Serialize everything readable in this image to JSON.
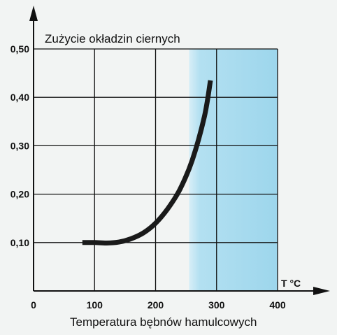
{
  "chart_data": {
    "type": "line",
    "title": "Zużycie okładzin ciernych",
    "xlabel": "Temperatura bębnów hamulcowych",
    "x_unit_label": "T °C",
    "ylabel": "",
    "xlim": [
      0,
      400
    ],
    "ylim": [
      0,
      0.5
    ],
    "x_ticks": [
      0,
      100,
      200,
      300,
      400
    ],
    "x_tick_labels": [
      "0",
      "100",
      "200",
      "300",
      "400"
    ],
    "y_ticks": [
      0.1,
      0.2,
      0.3,
      0.4,
      0.5
    ],
    "y_tick_labels": [
      "0,10",
      "0,20",
      "0,30",
      "0,40",
      "0,50"
    ],
    "grid": true,
    "highlight_region": {
      "x_start": 255,
      "x_end": 400,
      "color": "#a9ddf0"
    },
    "series": [
      {
        "color": "#1a1a1a",
        "x": [
          80,
          100,
          120,
          140,
          160,
          180,
          200,
          220,
          240,
          260,
          280,
          290
        ],
        "y": [
          0.1,
          0.1,
          0.099,
          0.101,
          0.108,
          0.12,
          0.14,
          0.17,
          0.21,
          0.27,
          0.36,
          0.435
        ]
      }
    ]
  }
}
